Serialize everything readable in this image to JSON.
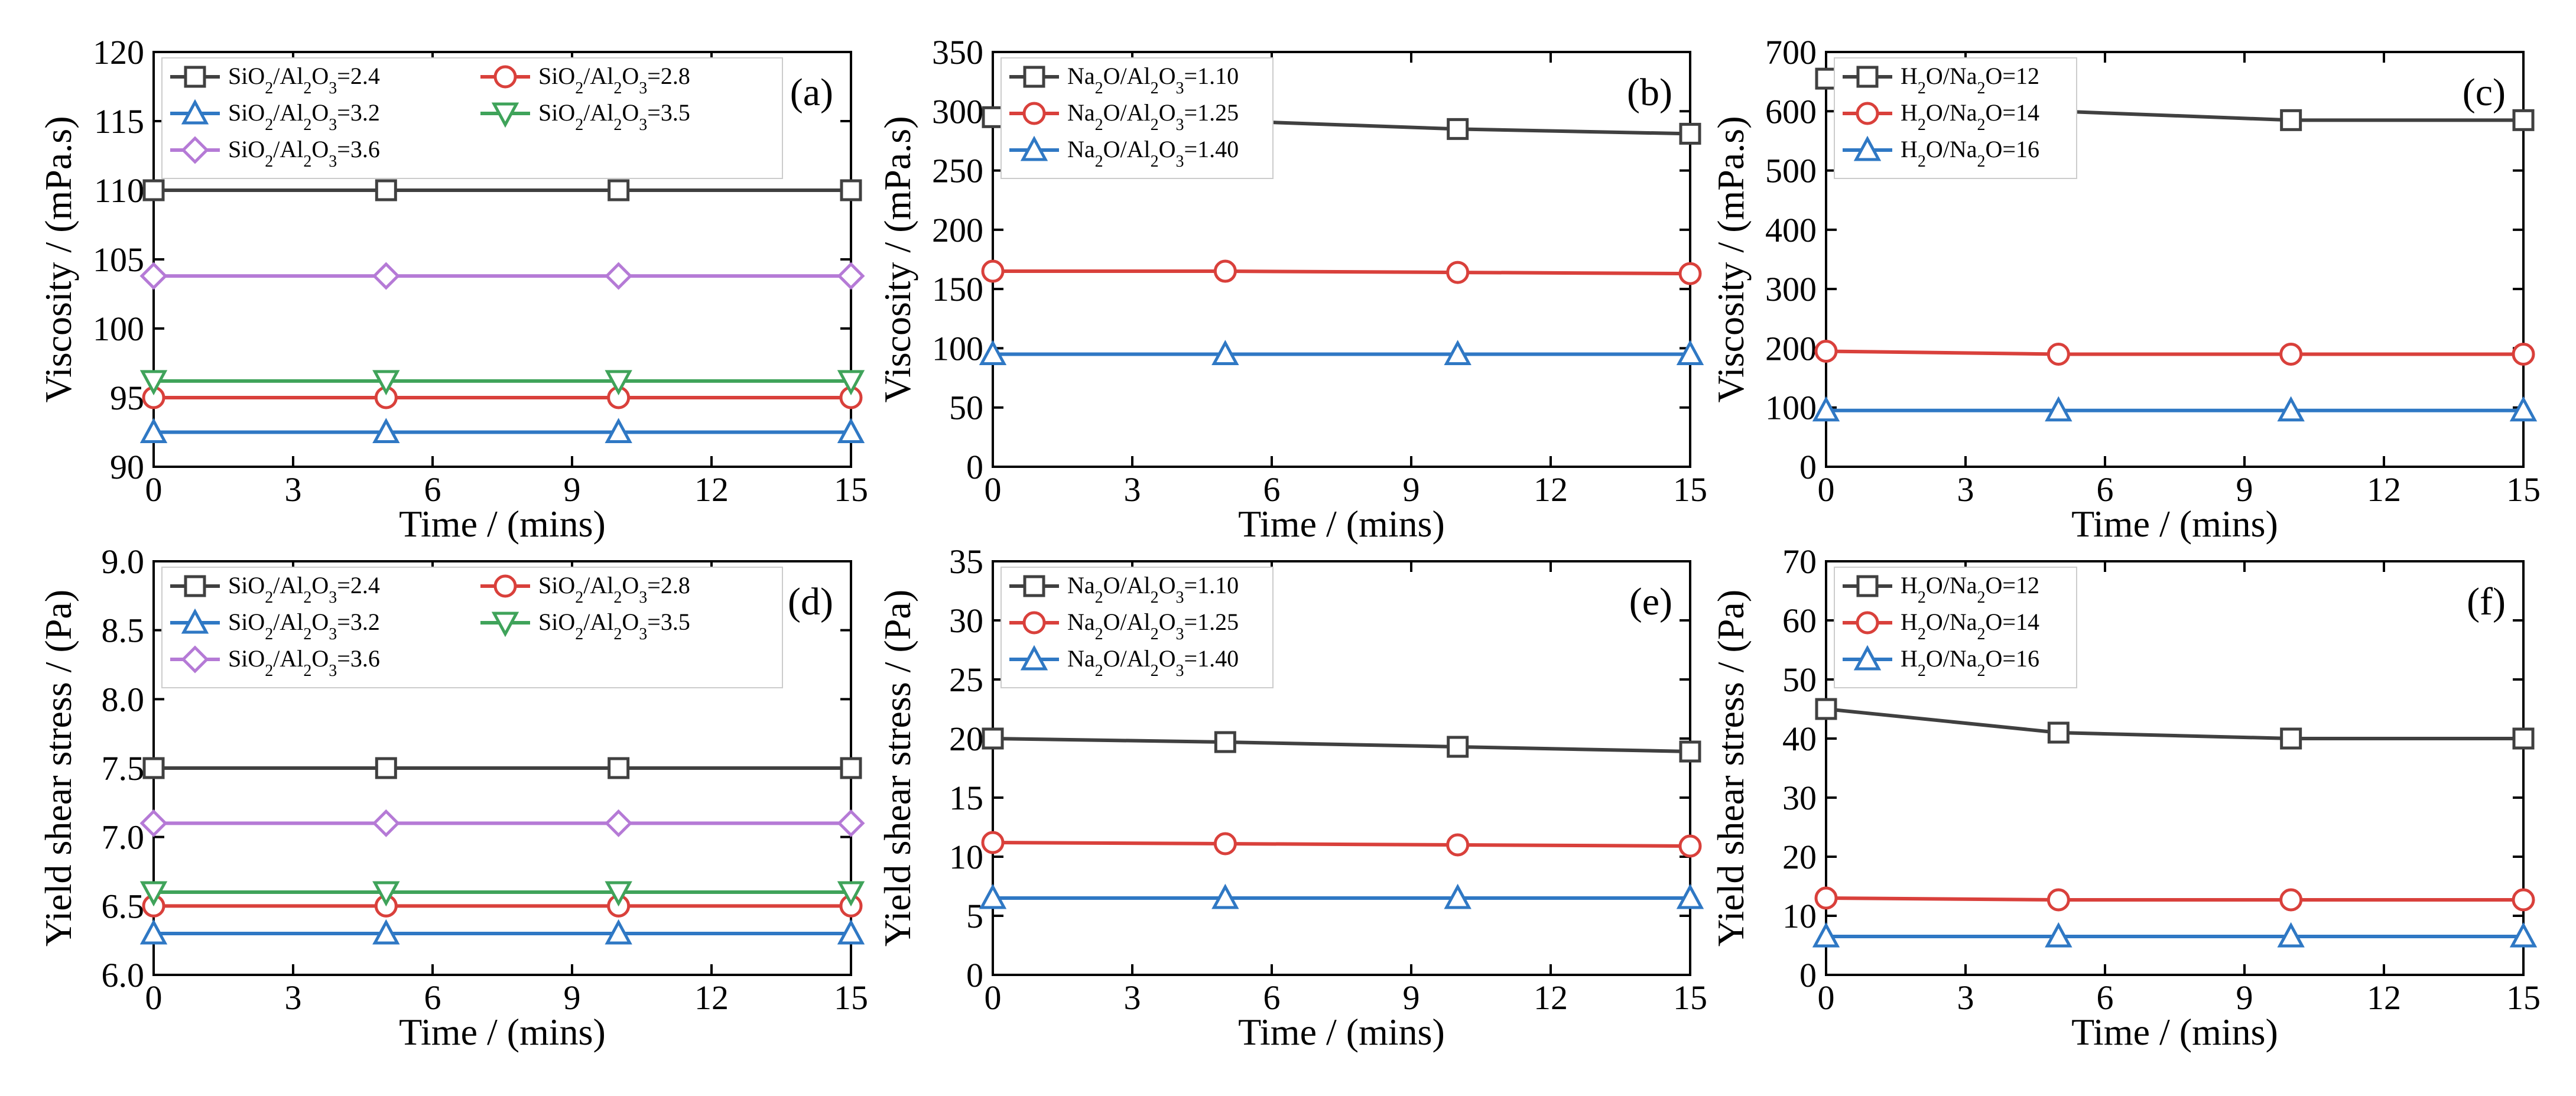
{
  "figure": {
    "type": "multi-panel line chart",
    "colors": {
      "black": "#404040",
      "red": "#d9403b",
      "blue": "#2f78c4",
      "green": "#3fa35a",
      "purple": "#b57ad6"
    }
  },
  "chart_data": [
    {
      "panel": "(a)",
      "type": "line",
      "xlabel": "Time / (mins)",
      "ylabel": "Viscosity / (mPa.s)",
      "xlim": [
        0,
        15
      ],
      "ylim": [
        90,
        120
      ],
      "xticks": [
        "0",
        "3",
        "6",
        "9",
        "12",
        "15"
      ],
      "yticks": [
        "90",
        "95",
        "100",
        "105",
        "110",
        "115",
        "120"
      ],
      "x": [
        0,
        5,
        10,
        15
      ],
      "series": [
        {
          "name": "SiO2/Al2O3=2.4",
          "label_parts": [
            [
              "SiO",
              ""
            ],
            [
              "2",
              "sub"
            ],
            [
              "/Al",
              ""
            ],
            [
              "2",
              "sub"
            ],
            [
              "O",
              ""
            ],
            [
              "3",
              "sub"
            ],
            [
              "=2.4",
              ""
            ]
          ],
          "color": "#404040",
          "marker": "square",
          "values": [
            110,
            110,
            110,
            110
          ]
        },
        {
          "name": "SiO2/Al2O3=2.8",
          "label_parts": [
            [
              "SiO",
              ""
            ],
            [
              "2",
              "sub"
            ],
            [
              "/Al",
              ""
            ],
            [
              "2",
              "sub"
            ],
            [
              "O",
              ""
            ],
            [
              "3",
              "sub"
            ],
            [
              "=2.8",
              ""
            ]
          ],
          "color": "#d9403b",
          "marker": "circle",
          "values": [
            95,
            95,
            95,
            95
          ]
        },
        {
          "name": "SiO2/Al2O3=3.2",
          "label_parts": [
            [
              "SiO",
              ""
            ],
            [
              "2",
              "sub"
            ],
            [
              "/Al",
              ""
            ],
            [
              "2",
              "sub"
            ],
            [
              "O",
              ""
            ],
            [
              "3",
              "sub"
            ],
            [
              "=3.2",
              ""
            ]
          ],
          "color": "#2f78c4",
          "marker": "triangle-up",
          "values": [
            92.5,
            92.5,
            92.5,
            92.5
          ]
        },
        {
          "name": "SiO2/Al2O3=3.5",
          "label_parts": [
            [
              "SiO",
              ""
            ],
            [
              "2",
              "sub"
            ],
            [
              "/Al",
              ""
            ],
            [
              "2",
              "sub"
            ],
            [
              "O",
              ""
            ],
            [
              "3",
              "sub"
            ],
            [
              "=3.5",
              ""
            ]
          ],
          "color": "#3fa35a",
          "marker": "triangle-down",
          "values": [
            96.2,
            96.2,
            96.2,
            96.2
          ]
        },
        {
          "name": "SiO2/Al2O3=3.6",
          "label_parts": [
            [
              "SiO",
              ""
            ],
            [
              "2",
              "sub"
            ],
            [
              "/Al",
              ""
            ],
            [
              "2",
              "sub"
            ],
            [
              "O",
              ""
            ],
            [
              "3",
              "sub"
            ],
            [
              "=3.6",
              ""
            ]
          ],
          "color": "#b57ad6",
          "marker": "diamond",
          "values": [
            103.8,
            103.8,
            103.8,
            103.8
          ]
        }
      ]
    },
    {
      "panel": "(b)",
      "type": "line",
      "xlabel": "Time / (mins)",
      "ylabel": "Viscosity / (mPa.s)",
      "xlim": [
        0,
        15
      ],
      "ylim": [
        0,
        350
      ],
      "xticks": [
        "0",
        "3",
        "6",
        "9",
        "12",
        "15"
      ],
      "yticks": [
        "0",
        "50",
        "100",
        "150",
        "200",
        "250",
        "300",
        "350"
      ],
      "x": [
        0,
        5,
        10,
        15
      ],
      "series": [
        {
          "name": "Na2O/Al2O3=1.10",
          "label_parts": [
            [
              "Na",
              ""
            ],
            [
              "2",
              "sub"
            ],
            [
              "O/Al",
              ""
            ],
            [
              "2",
              "sub"
            ],
            [
              "O",
              ""
            ],
            [
              "3",
              "sub"
            ],
            [
              "=1.10",
              ""
            ]
          ],
          "color": "#404040",
          "marker": "square",
          "values": [
            295,
            292,
            285,
            281
          ]
        },
        {
          "name": "Na2O/Al2O3=1.25",
          "label_parts": [
            [
              "Na",
              ""
            ],
            [
              "2",
              "sub"
            ],
            [
              "O/Al",
              ""
            ],
            [
              "2",
              "sub"
            ],
            [
              "O",
              ""
            ],
            [
              "3",
              "sub"
            ],
            [
              "=1.25",
              ""
            ]
          ],
          "color": "#d9403b",
          "marker": "circle",
          "values": [
            165,
            165,
            164,
            163
          ]
        },
        {
          "name": "Na2O/Al2O3=1.40",
          "label_parts": [
            [
              "Na",
              ""
            ],
            [
              "2",
              "sub"
            ],
            [
              "O/Al",
              ""
            ],
            [
              "2",
              "sub"
            ],
            [
              "O",
              ""
            ],
            [
              "3",
              "sub"
            ],
            [
              "=1.40",
              ""
            ]
          ],
          "color": "#2f78c4",
          "marker": "triangle-up",
          "values": [
            95,
            95,
            95,
            95
          ]
        }
      ]
    },
    {
      "panel": "(c)",
      "type": "line",
      "xlabel": "Time / (mins)",
      "ylabel": "Viscosity / (mPa.s)",
      "xlim": [
        0,
        15
      ],
      "ylim": [
        0,
        700
      ],
      "xticks": [
        "0",
        "3",
        "6",
        "9",
        "12",
        "15"
      ],
      "yticks": [
        "0",
        "100",
        "200",
        "300",
        "400",
        "500",
        "600",
        "700"
      ],
      "x": [
        0,
        5,
        10,
        15
      ],
      "series": [
        {
          "name": "H2O/Na2O=12",
          "label_parts": [
            [
              "H",
              ""
            ],
            [
              "2",
              "sub"
            ],
            [
              "O/Na",
              ""
            ],
            [
              "2",
              "sub"
            ],
            [
              "O=12",
              ""
            ]
          ],
          "color": "#404040",
          "marker": "square",
          "values": [
            655,
            600,
            585,
            585
          ]
        },
        {
          "name": "H2O/Na2O=14",
          "label_parts": [
            [
              "H",
              ""
            ],
            [
              "2",
              "sub"
            ],
            [
              "O/Na",
              ""
            ],
            [
              "2",
              "sub"
            ],
            [
              "O=14",
              ""
            ]
          ],
          "color": "#d9403b",
          "marker": "circle",
          "values": [
            195,
            190,
            190,
            190
          ]
        },
        {
          "name": "H2O/Na2O=16",
          "label_parts": [
            [
              "H",
              ""
            ],
            [
              "2",
              "sub"
            ],
            [
              "O/Na",
              ""
            ],
            [
              "2",
              "sub"
            ],
            [
              "O=16",
              ""
            ]
          ],
          "color": "#2f78c4",
          "marker": "triangle-up",
          "values": [
            95,
            95,
            95,
            95
          ]
        }
      ]
    },
    {
      "panel": "(d)",
      "type": "line",
      "xlabel": "Time / (mins)",
      "ylabel": "Yield shear stress / (Pa)",
      "xlim": [
        0,
        15
      ],
      "ylim": [
        6.0,
        9.0
      ],
      "xticks": [
        "0",
        "3",
        "6",
        "9",
        "12",
        "15"
      ],
      "yticks": [
        "6.0",
        "6.5",
        "7.0",
        "7.5",
        "8.0",
        "8.5",
        "9.0"
      ],
      "x": [
        0,
        5,
        10,
        15
      ],
      "series": [
        {
          "name": "SiO2/Al2O3=2.4",
          "label_parts": [
            [
              "SiO",
              ""
            ],
            [
              "2",
              "sub"
            ],
            [
              "/Al",
              ""
            ],
            [
              "2",
              "sub"
            ],
            [
              "O",
              ""
            ],
            [
              "3",
              "sub"
            ],
            [
              "=2.4",
              ""
            ]
          ],
          "color": "#404040",
          "marker": "square",
          "values": [
            7.5,
            7.5,
            7.5,
            7.5
          ]
        },
        {
          "name": "SiO2/Al2O3=2.8",
          "label_parts": [
            [
              "SiO",
              ""
            ],
            [
              "2",
              "sub"
            ],
            [
              "/Al",
              ""
            ],
            [
              "2",
              "sub"
            ],
            [
              "O",
              ""
            ],
            [
              "3",
              "sub"
            ],
            [
              "=2.8",
              ""
            ]
          ],
          "color": "#d9403b",
          "marker": "circle",
          "values": [
            6.5,
            6.5,
            6.5,
            6.5
          ]
        },
        {
          "name": "SiO2/Al2O3=3.2",
          "label_parts": [
            [
              "SiO",
              ""
            ],
            [
              "2",
              "sub"
            ],
            [
              "/Al",
              ""
            ],
            [
              "2",
              "sub"
            ],
            [
              "O",
              ""
            ],
            [
              "3",
              "sub"
            ],
            [
              "=3.2",
              ""
            ]
          ],
          "color": "#2f78c4",
          "marker": "triangle-up",
          "values": [
            6.3,
            6.3,
            6.3,
            6.3
          ]
        },
        {
          "name": "SiO2/Al2O3=3.5",
          "label_parts": [
            [
              "SiO",
              ""
            ],
            [
              "2",
              "sub"
            ],
            [
              "/Al",
              ""
            ],
            [
              "2",
              "sub"
            ],
            [
              "O",
              ""
            ],
            [
              "3",
              "sub"
            ],
            [
              "=3.5",
              ""
            ]
          ],
          "color": "#3fa35a",
          "marker": "triangle-down",
          "values": [
            6.6,
            6.6,
            6.6,
            6.6
          ]
        },
        {
          "name": "SiO2/Al2O3=3.6",
          "label_parts": [
            [
              "SiO",
              ""
            ],
            [
              "2",
              "sub"
            ],
            [
              "/Al",
              ""
            ],
            [
              "2",
              "sub"
            ],
            [
              "O",
              ""
            ],
            [
              "3",
              "sub"
            ],
            [
              "=3.6",
              ""
            ]
          ],
          "color": "#b57ad6",
          "marker": "diamond",
          "values": [
            7.1,
            7.1,
            7.1,
            7.1
          ]
        }
      ]
    },
    {
      "panel": "(e)",
      "type": "line",
      "xlabel": "Time / (mins)",
      "ylabel": "Yield shear stress / (Pa)",
      "xlim": [
        0,
        15
      ],
      "ylim": [
        0,
        35
      ],
      "xticks": [
        "0",
        "3",
        "6",
        "9",
        "12",
        "15"
      ],
      "yticks": [
        "0",
        "5",
        "10",
        "15",
        "20",
        "25",
        "30",
        "35"
      ],
      "x": [
        0,
        5,
        10,
        15
      ],
      "series": [
        {
          "name": "Na2O/Al2O3=1.10",
          "label_parts": [
            [
              "Na",
              ""
            ],
            [
              "2",
              "sub"
            ],
            [
              "O/Al",
              ""
            ],
            [
              "2",
              "sub"
            ],
            [
              "O",
              ""
            ],
            [
              "3",
              "sub"
            ],
            [
              "=1.10",
              ""
            ]
          ],
          "color": "#404040",
          "marker": "square",
          "values": [
            20,
            19.7,
            19.3,
            18.9
          ]
        },
        {
          "name": "Na2O/Al2O3=1.25",
          "label_parts": [
            [
              "Na",
              ""
            ],
            [
              "2",
              "sub"
            ],
            [
              "O/Al",
              ""
            ],
            [
              "2",
              "sub"
            ],
            [
              "O",
              ""
            ],
            [
              "3",
              "sub"
            ],
            [
              "=1.25",
              ""
            ]
          ],
          "color": "#d9403b",
          "marker": "circle",
          "values": [
            11.2,
            11.1,
            11.0,
            10.9
          ]
        },
        {
          "name": "Na2O/Al2O3=1.40",
          "label_parts": [
            [
              "Na",
              ""
            ],
            [
              "2",
              "sub"
            ],
            [
              "O/Al",
              ""
            ],
            [
              "2",
              "sub"
            ],
            [
              "O",
              ""
            ],
            [
              "3",
              "sub"
            ],
            [
              "=1.40",
              ""
            ]
          ],
          "color": "#2f78c4",
          "marker": "triangle-up",
          "values": [
            6.5,
            6.5,
            6.5,
            6.5
          ]
        }
      ]
    },
    {
      "panel": "(f)",
      "type": "line",
      "xlabel": "Time / (mins)",
      "ylabel": "Yield shear stress / (Pa)",
      "xlim": [
        0,
        15
      ],
      "ylim": [
        0,
        70
      ],
      "xticks": [
        "0",
        "3",
        "6",
        "9",
        "12",
        "15"
      ],
      "yticks": [
        "0",
        "10",
        "20",
        "30",
        "40",
        "50",
        "60",
        "70"
      ],
      "x": [
        0,
        5,
        10,
        15
      ],
      "series": [
        {
          "name": "H2O/Na2O=12",
          "label_parts": [
            [
              "H",
              ""
            ],
            [
              "2",
              "sub"
            ],
            [
              "O/Na",
              ""
            ],
            [
              "2",
              "sub"
            ],
            [
              "O=12",
              ""
            ]
          ],
          "color": "#404040",
          "marker": "square",
          "values": [
            45,
            41,
            40,
            40
          ]
        },
        {
          "name": "H2O/Na2O=14",
          "label_parts": [
            [
              "H",
              ""
            ],
            [
              "2",
              "sub"
            ],
            [
              "O/Na",
              ""
            ],
            [
              "2",
              "sub"
            ],
            [
              "O=14",
              ""
            ]
          ],
          "color": "#d9403b",
          "marker": "circle",
          "values": [
            13,
            12.7,
            12.7,
            12.7
          ]
        },
        {
          "name": "H2O/Na2O=16",
          "label_parts": [
            [
              "H",
              ""
            ],
            [
              "2",
              "sub"
            ],
            [
              "O/Na",
              ""
            ],
            [
              "2",
              "sub"
            ],
            [
              "O=16",
              ""
            ]
          ],
          "color": "#2f78c4",
          "marker": "triangle-up",
          "values": [
            6.5,
            6.5,
            6.5,
            6.5
          ]
        }
      ]
    }
  ]
}
